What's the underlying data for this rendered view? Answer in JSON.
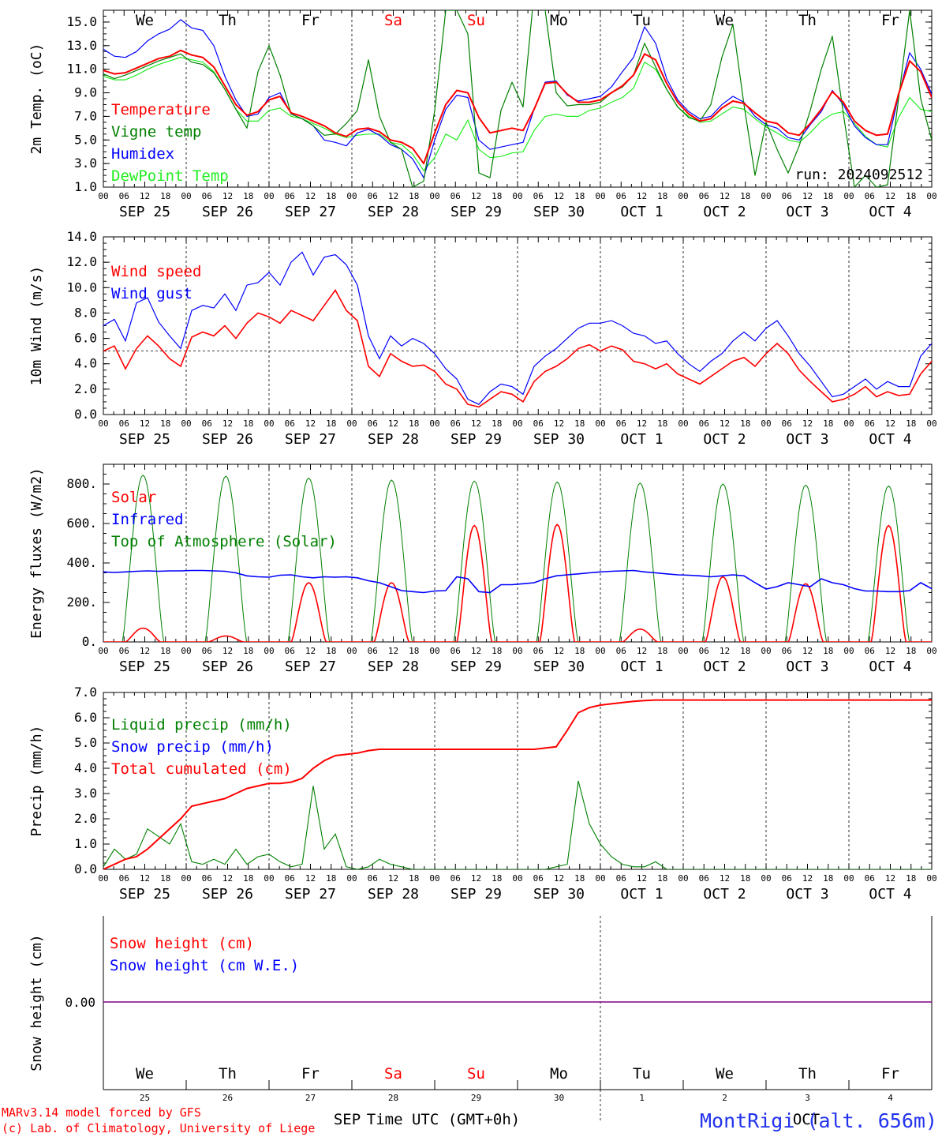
{
  "chart_data": {
    "type": "line",
    "days": [
      "SEP 25",
      "SEP 26",
      "SEP 27",
      "SEP 28",
      "SEP 29",
      "SEP 30",
      "OCT  1",
      "OCT  2",
      "OCT  3",
      "OCT  4"
    ],
    "weekdays": [
      "We",
      "Th",
      "Fr",
      "Sa",
      "Su",
      "Mo",
      "Tu",
      "We",
      "Th",
      "Fr"
    ],
    "bottom_day_numbers": [
      "25",
      "26",
      "27",
      "28",
      "29",
      "30",
      "1",
      "2",
      "3",
      "4"
    ],
    "hour_ticks": [
      "00",
      "06",
      "12",
      "18"
    ],
    "hours_per_step": 3,
    "colors": {
      "red": "#ff0000",
      "blue": "#0000ff",
      "green": "#008000",
      "lightgreen": "#22ee22",
      "weekend": "#ff0000",
      "weekday": "#000000",
      "snow": "#800080"
    },
    "panels": [
      {
        "id": "temperature",
        "ylabel": "2m Temp. (oC)",
        "ylim": [
          1,
          16
        ],
        "yticks": [
          "1.0",
          "3.0",
          "5.0",
          "7.0",
          "9.0",
          "11.0",
          "13.0",
          "15.0"
        ],
        "run_label": "run: 2024092512",
        "series": [
          {
            "name": "Temperature",
            "color": "#ff0000",
            "values": [
              10.9,
              10.6,
              10.7,
              11.1,
              11.5,
              11.9,
              12.1,
              12.6,
              12.2,
              12.0,
              11.2,
              9.6,
              8.0,
              7.1,
              7.4,
              8.4,
              8.7,
              7.3,
              7.0,
              6.6,
              6.2,
              5.6,
              5.3,
              5.9,
              6.0,
              5.7,
              5.0,
              4.8,
              4.3,
              3.0,
              5.6,
              8.0,
              9.2,
              9.0,
              6.9,
              5.6,
              5.8,
              6.0,
              5.8,
              7.6,
              9.8,
              9.9,
              8.9,
              8.2,
              8.2,
              8.4,
              9.0,
              9.6,
              10.5,
              12.3,
              11.8,
              9.8,
              8.2,
              7.2,
              6.6,
              6.8,
              7.7,
              8.3,
              8.1,
              7.3,
              6.6,
              6.4,
              5.6,
              5.4,
              6.4,
              7.6,
              9.1,
              8.2,
              6.6,
              5.8,
              5.4,
              5.5,
              8.9,
              11.7,
              10.8,
              8.6
            ]
          },
          {
            "name": "Vigne temp",
            "color": "#008000",
            "values": [
              10.6,
              10.2,
              10.5,
              10.9,
              11.3,
              11.7,
              12.0,
              12.3,
              11.6,
              11.4,
              10.7,
              9.3,
              7.6,
              6.0,
              10.8,
              13.0,
              10.5,
              7.2,
              6.8,
              6.2,
              5.4,
              5.5,
              6.4,
              7.5,
              11.8,
              7.0,
              4.8,
              4.2,
              1.0,
              1.5,
              7.5,
              16.0,
              16.0,
              14.0,
              2.2,
              1.8,
              7.5,
              9.9,
              7.8,
              17.5,
              16.0,
              9.0,
              7.9,
              8.0,
              8.0,
              8.2,
              9.0,
              9.5,
              10.5,
              13.2,
              11.2,
              9.3,
              7.8,
              6.9,
              6.6,
              8.0,
              12.0,
              14.8,
              8.0,
              2.0,
              6.5,
              4.2,
              2.2,
              4.5,
              7.5,
              11.0,
              13.8,
              7.2,
              1.0,
              2.0,
              1.0,
              1.2,
              8.5,
              16.0,
              8.5,
              5.0
            ]
          },
          {
            "name": "Humidex",
            "color": "#0000ff",
            "values": [
              12.7,
              12.1,
              12.0,
              12.5,
              13.4,
              14.0,
              14.4,
              15.2,
              14.5,
              14.3,
              13.0,
              10.4,
              8.4,
              7.0,
              7.2,
              8.6,
              9.0,
              7.2,
              6.8,
              6.2,
              5.0,
              4.8,
              4.5,
              5.6,
              5.9,
              5.4,
              4.6,
              4.2,
              3.4,
              1.8,
              5.0,
              7.6,
              8.8,
              8.6,
              5.0,
              4.2,
              4.4,
              4.6,
              4.8,
              7.6,
              9.9,
              10.0,
              8.8,
              8.3,
              8.5,
              8.7,
              9.5,
              10.8,
              12.0,
              14.6,
              13.2,
              10.2,
              8.4,
              7.4,
              6.8,
              7.0,
              8.0,
              8.7,
              8.2,
              7.0,
              6.3,
              6.0,
              5.2,
              5.0,
              6.3,
              7.4,
              9.2,
              8.0,
              6.2,
              5.2,
              4.6,
              4.6,
              8.8,
              12.4,
              11.0,
              8.9
            ]
          },
          {
            "name": "DewPoint Temp",
            "color": "#22ee22",
            "values": [
              10.4,
              10.1,
              10.1,
              10.5,
              11.0,
              11.4,
              11.7,
              12.0,
              11.8,
              11.6,
              10.8,
              9.3,
              7.6,
              6.6,
              6.6,
              7.5,
              7.7,
              7.0,
              6.8,
              6.4,
              6.0,
              5.5,
              5.2,
              5.4,
              5.5,
              5.5,
              4.8,
              4.6,
              3.8,
              2.4,
              3.5,
              5.5,
              5.0,
              6.7,
              4.2,
              3.5,
              3.6,
              3.9,
              4.0,
              5.8,
              7.0,
              7.2,
              7.0,
              7.0,
              7.5,
              7.7,
              8.2,
              8.6,
              9.4,
              11.6,
              11.0,
              9.3,
              7.8,
              7.0,
              6.5,
              6.6,
              7.2,
              7.8,
              7.6,
              6.8,
              6.1,
              5.6,
              5.0,
              4.8,
              5.6,
              6.6,
              7.2,
              7.4,
              6.4,
              5.3,
              4.6,
              4.4,
              6.9,
              8.6,
              7.6,
              7.4
            ]
          }
        ]
      },
      {
        "id": "wind",
        "ylabel": "10m Wind (m/s)",
        "ylim": [
          0,
          14
        ],
        "yticks": [
          "0.0",
          "2.0",
          "4.0",
          "6.0",
          "8.0",
          "10.0",
          "12.0",
          "14.0"
        ],
        "reference_line": 5,
        "series": [
          {
            "name": "Wind speed",
            "color": "#ff0000",
            "values": [
              5.0,
              5.4,
              3.6,
              5.2,
              6.2,
              5.4,
              4.4,
              3.8,
              6.1,
              6.5,
              6.2,
              7.0,
              6.0,
              7.2,
              8.0,
              7.7,
              7.2,
              8.2,
              7.8,
              7.4,
              8.6,
              9.8,
              8.2,
              7.4,
              3.8,
              3.0,
              4.8,
              4.2,
              3.8,
              3.9,
              3.4,
              2.4,
              2.0,
              0.8,
              0.6,
              1.2,
              1.8,
              1.6,
              1.0,
              2.6,
              3.4,
              3.8,
              4.4,
              5.2,
              5.5,
              5.0,
              5.4,
              5.1,
              4.2,
              4.0,
              3.6,
              4.0,
              3.2,
              2.8,
              2.4,
              3.0,
              3.6,
              4.2,
              4.5,
              3.8,
              4.8,
              5.6,
              4.8,
              3.5,
              2.6,
              1.8,
              1.0,
              1.2,
              1.6,
              2.2,
              1.4,
              1.8,
              1.5,
              1.6,
              3.2,
              4.2
            ]
          },
          {
            "name": "Wind gust",
            "color": "#0000ff",
            "values": [
              7.0,
              7.5,
              5.8,
              8.8,
              9.2,
              7.3,
              6.2,
              5.2,
              8.2,
              8.6,
              8.4,
              9.5,
              8.2,
              10.2,
              10.4,
              11.2,
              10.2,
              12.0,
              12.8,
              11.0,
              12.4,
              12.6,
              11.8,
              10.2,
              6.2,
              4.4,
              6.2,
              5.4,
              6.0,
              5.6,
              4.8,
              3.6,
              2.8,
              1.2,
              0.8,
              1.8,
              2.4,
              2.2,
              1.6,
              3.8,
              4.6,
              5.2,
              6.0,
              6.8,
              7.2,
              7.2,
              7.4,
              7.0,
              6.4,
              6.2,
              5.6,
              5.8,
              4.8,
              4.0,
              3.4,
              4.2,
              4.8,
              5.8,
              6.5,
              5.8,
              6.8,
              7.4,
              6.2,
              4.8,
              3.8,
              2.6,
              1.4,
              1.6,
              2.2,
              2.8,
              2.0,
              2.6,
              2.2,
              2.2,
              4.6,
              5.6
            ]
          }
        ]
      },
      {
        "id": "energy",
        "ylabel": "Energy fluxes (W/m2)",
        "ylim": [
          0,
          900
        ],
        "yticks": [
          "0.",
          "200.",
          "400.",
          "600.",
          "800."
        ],
        "series": [
          {
            "name": "Solar",
            "color": "#ff0000",
            "solar_peaks": [
              70,
              30,
              300,
              300,
              590,
              595,
              65,
              330,
              295,
              590
            ]
          },
          {
            "name": "Infrared",
            "color": "#0000ff",
            "values": [
              355,
              352,
              355,
              358,
              360,
              358,
              360,
              360,
              362,
              362,
              360,
              358,
              350,
              335,
              330,
              328,
              338,
              340,
              330,
              325,
              330,
              328,
              330,
              325,
              310,
              300,
              280,
              260,
              255,
              250,
              258,
              260,
              330,
              320,
              255,
              250,
              290,
              290,
              295,
              300,
              320,
              335,
              340,
              345,
              350,
              355,
              358,
              360,
              362,
              355,
              350,
              345,
              340,
              338,
              335,
              330,
              335,
              340,
              335,
              300,
              268,
              280,
              300,
              290,
              280,
              320,
              300,
              290,
              270,
              258,
              258,
              255,
              255,
              260,
              300,
              270
            ]
          },
          {
            "name": "Top of Atmosphere (Solar)",
            "color": "#008000",
            "toa_peaks": [
              845,
              840,
              830,
              820,
              815,
              810,
              805,
              800,
              795,
              790
            ]
          }
        ]
      },
      {
        "id": "precip",
        "ylabel": "Precip (mm/h)",
        "ylim": [
          0,
          7
        ],
        "yticks": [
          "0.0",
          "1.0",
          "2.0",
          "3.0",
          "4.0",
          "5.0",
          "6.0",
          "7.0"
        ],
        "series": [
          {
            "name": "Liquid precip (mm/h)",
            "color": "#008000",
            "values": [
              0.1,
              0.8,
              0.4,
              0.6,
              1.6,
              1.3,
              1.0,
              1.8,
              0.3,
              0.2,
              0.4,
              0.2,
              0.8,
              0.2,
              0.5,
              0.6,
              0.3,
              0.1,
              0.2,
              3.3,
              0.8,
              1.4,
              0.1,
              0.0,
              0.1,
              0.4,
              0.2,
              0.1,
              0.0,
              0.0,
              0.0,
              0.0,
              0.0,
              0.0,
              0.0,
              0.0,
              0.0,
              0.0,
              0.0,
              0.0,
              0.0,
              0.1,
              0.2,
              3.5,
              1.8,
              1.0,
              0.5,
              0.2,
              0.1,
              0.1,
              0.3,
              0.0,
              0.0,
              0.0,
              0.0,
              0.0,
              0.0,
              0.0,
              0.0,
              0.0,
              0.0,
              0.0,
              0.0,
              0.0,
              0.0,
              0.0,
              0.0,
              0.0,
              0.0,
              0.0,
              0.0,
              0.0,
              0.0,
              0.0,
              0.0,
              0.0
            ]
          },
          {
            "name": "Snow precip (mm/h)",
            "color": "#0000ff",
            "values": []
          },
          {
            "name": "Total cumulated (cm)",
            "color": "#ff0000",
            "values": [
              0.0,
              0.2,
              0.4,
              0.5,
              0.8,
              1.2,
              1.6,
              2.0,
              2.5,
              2.6,
              2.7,
              2.8,
              3.0,
              3.2,
              3.3,
              3.4,
              3.4,
              3.45,
              3.6,
              4.0,
              4.3,
              4.5,
              4.55,
              4.6,
              4.7,
              4.75,
              4.75,
              4.75,
              4.75,
              4.75,
              4.75,
              4.75,
              4.75,
              4.75,
              4.75,
              4.75,
              4.75,
              4.75,
              4.75,
              4.75,
              4.8,
              4.85,
              5.5,
              6.2,
              6.4,
              6.5,
              6.55,
              6.6,
              6.65,
              6.68,
              6.7,
              6.7,
              6.7,
              6.7,
              6.7,
              6.7,
              6.7,
              6.7,
              6.7,
              6.7,
              6.7,
              6.7,
              6.7,
              6.7,
              6.7,
              6.7,
              6.7,
              6.7,
              6.7,
              6.7,
              6.7,
              6.7,
              6.7,
              6.7,
              6.7,
              6.7
            ]
          }
        ]
      },
      {
        "id": "snow",
        "ylabel": "Snow height (cm)",
        "yticks": [
          "0.00"
        ],
        "series": [
          {
            "name": "Snow height (cm)",
            "color": "#ff0000"
          },
          {
            "name": "Snow height (cm W.E.)",
            "color": "#0000ff"
          }
        ]
      }
    ],
    "footer": {
      "model_line": "MARv3.14 model forced by GFS",
      "copyright_line": "(c) Lab. of Climatology, University of Liege",
      "xlabel": "Time UTC (GMT+0h)",
      "month_left": "SEP",
      "month_right": "OCT",
      "station": "MontRigi (alt. 656m)"
    }
  }
}
